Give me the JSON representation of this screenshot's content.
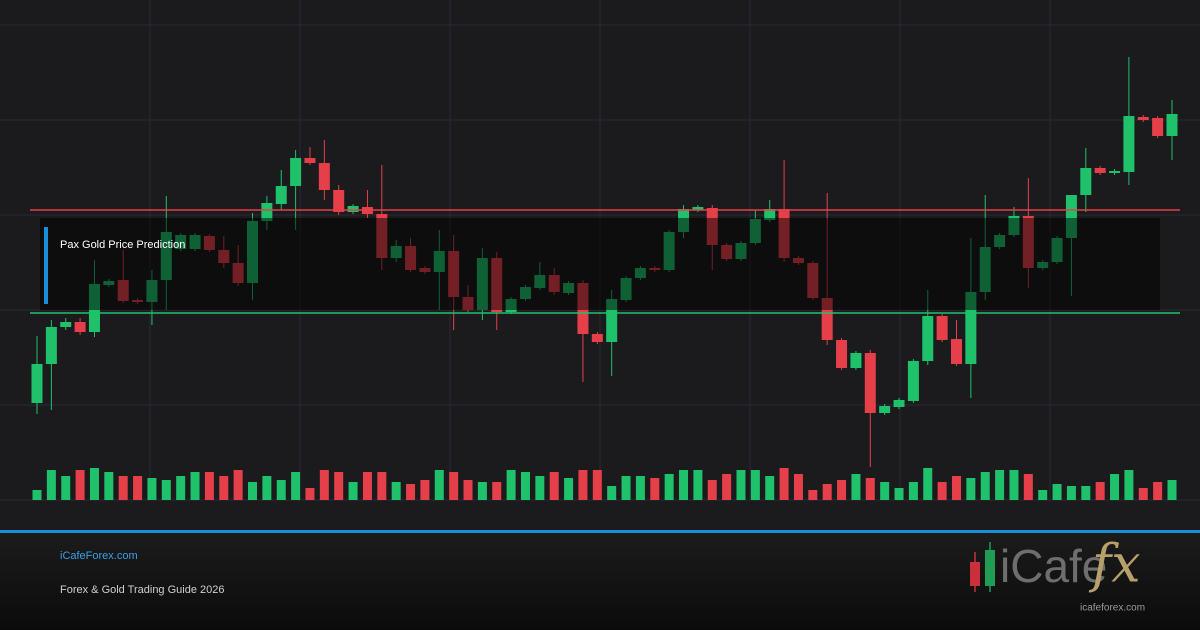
{
  "chart_data": {
    "type": "candlestick",
    "title": "Pax Gold Price Prediction",
    "up_color": "#1fc16b",
    "down_color": "#e5404a",
    "ylim": [
      0,
      500
    ],
    "y2lim": [
      0,
      100
    ],
    "resistance": 290,
    "support": 187,
    "open": [
      97,
      136,
      173,
      178,
      168,
      215,
      220,
      200,
      198,
      220,
      251,
      251,
      264,
      250,
      237,
      217,
      279,
      296,
      314,
      342,
      337,
      310,
      288,
      293,
      286,
      242,
      254,
      232,
      228,
      249,
      203,
      190,
      242,
      188,
      201,
      212,
      225,
      207,
      217,
      166,
      158,
      200,
      222,
      232,
      230,
      268,
      290,
      292,
      255,
      241,
      257,
      280,
      291,
      242,
      237,
      202,
      160,
      132,
      147,
      87,
      93,
      99,
      139,
      184,
      161,
      136,
      208,
      253,
      265,
      284,
      232,
      238,
      262,
      305,
      332,
      327,
      328,
      383,
      382,
      364
    ],
    "close": [
      136,
      173,
      178,
      168,
      216,
      219,
      199,
      198,
      220,
      268,
      265,
      265,
      250,
      237,
      217,
      279,
      297,
      314,
      342,
      337,
      310,
      288,
      294,
      286,
      242,
      254,
      230,
      228,
      249,
      203,
      190,
      242,
      188,
      201,
      213,
      225,
      208,
      217,
      166,
      158,
      201,
      222,
      232,
      230,
      268,
      291,
      293,
      255,
      241,
      257,
      281,
      291,
      242,
      237,
      202,
      160,
      132,
      147,
      87,
      94,
      100,
      139,
      184,
      160,
      136,
      208,
      253,
      265,
      284,
      232,
      238,
      262,
      305,
      332,
      327,
      329,
      384,
      380,
      364,
      386
    ],
    "high": [
      164,
      180,
      182,
      182,
      240,
      221,
      250,
      202,
      230,
      304,
      267,
      267,
      266,
      264,
      255,
      287,
      304,
      330,
      350,
      353,
      360,
      315,
      296,
      310,
      335,
      260,
      262,
      234,
      270,
      265,
      215,
      252,
      248,
      203,
      215,
      238,
      232,
      219,
      220,
      168,
      210,
      224,
      234,
      234,
      270,
      295,
      295,
      295,
      257,
      259,
      290,
      300,
      340,
      244,
      239,
      307,
      162,
      149,
      150,
      96,
      102,
      141,
      210,
      186,
      180,
      262,
      305,
      267,
      293,
      322,
      240,
      264,
      305,
      352,
      334,
      331,
      443,
      385,
      384,
      400
    ],
    "low": [
      86,
      90,
      170,
      165,
      163,
      213,
      197,
      196,
      175,
      190,
      249,
      249,
      248,
      232,
      214,
      200,
      270,
      290,
      270,
      335,
      300,
      285,
      286,
      282,
      230,
      238,
      228,
      226,
      190,
      170,
      188,
      180,
      170,
      186,
      199,
      210,
      205,
      205,
      118,
      156,
      124,
      198,
      220,
      228,
      228,
      262,
      288,
      230,
      239,
      239,
      255,
      278,
      238,
      235,
      200,
      155,
      130,
      130,
      33,
      85,
      91,
      97,
      135,
      158,
      134,
      102,
      200,
      251,
      263,
      212,
      230,
      236,
      204,
      288,
      325,
      325,
      315,
      378,
      362,
      340
    ],
    "volume": [
      10,
      30,
      24,
      30,
      32,
      28,
      24,
      24,
      22,
      20,
      24,
      28,
      28,
      24,
      30,
      18,
      24,
      20,
      28,
      12,
      30,
      28,
      18,
      28,
      28,
      18,
      16,
      20,
      30,
      28,
      20,
      18,
      18,
      30,
      28,
      24,
      28,
      22,
      30,
      30,
      14,
      24,
      24,
      22,
      26,
      30,
      30,
      20,
      26,
      30,
      30,
      24,
      32,
      26,
      10,
      16,
      20,
      26,
      22,
      18,
      12,
      18,
      32,
      18,
      24,
      22,
      28,
      30,
      30,
      26,
      10,
      16,
      14,
      14,
      18,
      26,
      30,
      12,
      18,
      20
    ]
  },
  "footer": {
    "site": "iCafeForex.com",
    "subtitle": "Forex & Gold Trading Guide 2026",
    "logo_main": "iCafe",
    "logo_accent": "fx",
    "logo_url": "icafeforex.com"
  }
}
